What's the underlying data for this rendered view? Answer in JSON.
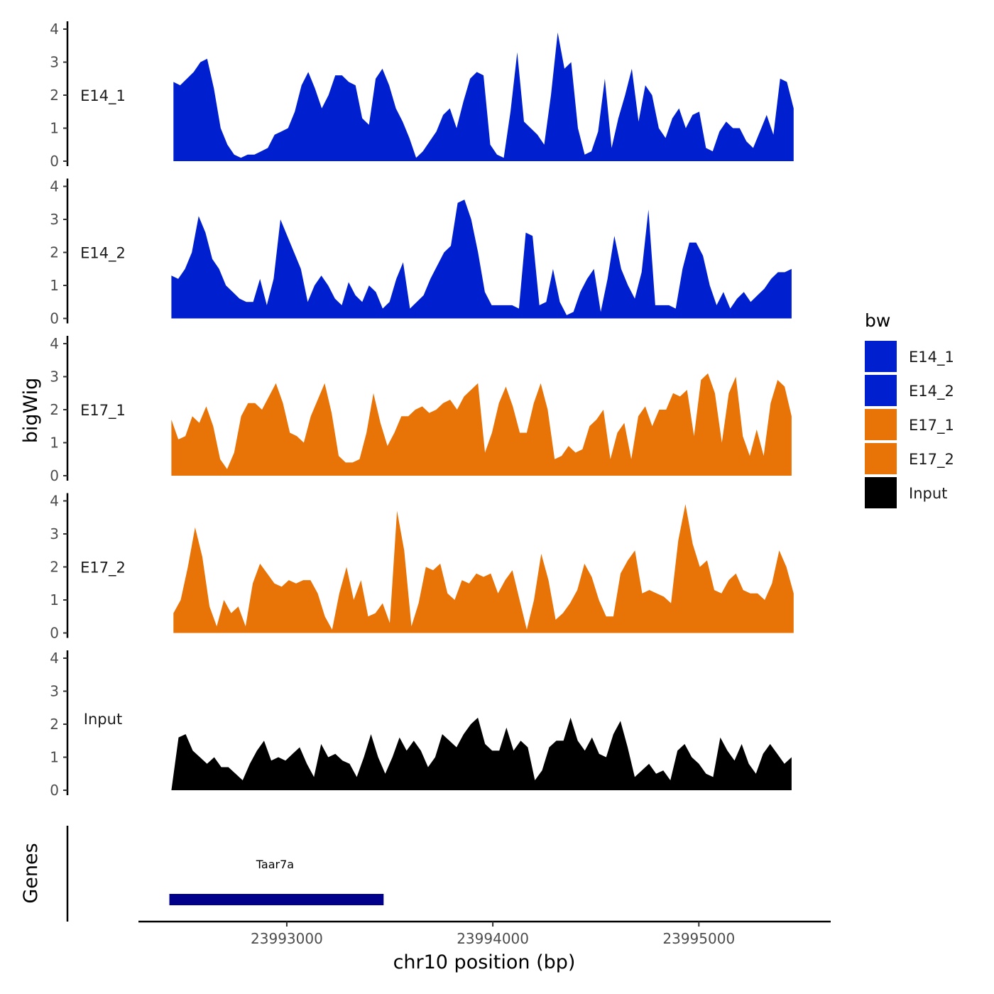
{
  "chart_data": {
    "type": "area",
    "title": "",
    "xlabel": "chr10 position (bp)",
    "ylabel": "bigWig",
    "genes_label": "Genes",
    "ylim": [
      0,
      4
    ],
    "yticks": [
      "0",
      "1",
      "2",
      "3",
      "4"
    ],
    "xlim": [
      23992280,
      23995640
    ],
    "xticks": [
      {
        "value": 23993000,
        "label": "23993000"
      },
      {
        "value": 23994000,
        "label": "23994000"
      },
      {
        "value": 23995000,
        "label": "23995000"
      }
    ],
    "legend": {
      "title": "bw",
      "position": "right",
      "entries": [
        {
          "label": "E14_1",
          "color": "#0020CF"
        },
        {
          "label": "E14_2",
          "color": "#0020CF"
        },
        {
          "label": "E17_1",
          "color": "#E87307"
        },
        {
          "label": "E17_2",
          "color": "#E87307"
        },
        {
          "label": "Input",
          "color": "#000000"
        }
      ]
    },
    "series": [
      {
        "name": "E14_1",
        "color": "#0020CF",
        "x_start": 23992450,
        "x_end": 23995460,
        "values": [
          2.4,
          2.3,
          2.5,
          2.7,
          3.0,
          3.1,
          2.2,
          1.0,
          0.5,
          0.2,
          0.1,
          0.2,
          0.2,
          0.3,
          0.4,
          0.8,
          0.9,
          1.0,
          1.5,
          2.3,
          2.7,
          2.2,
          1.6,
          2.0,
          2.6,
          2.6,
          2.4,
          2.3,
          1.3,
          1.1,
          2.5,
          2.8,
          2.3,
          1.6,
          1.2,
          0.7,
          0.1,
          0.3,
          0.6,
          0.9,
          1.4,
          1.6,
          1.0,
          1.8,
          2.5,
          2.7,
          2.6,
          0.5,
          0.2,
          0.1,
          1.5,
          3.3,
          1.2,
          1.0,
          0.8,
          0.5,
          2.0,
          3.9,
          2.8,
          3.0,
          1.0,
          0.2,
          0.3,
          0.9,
          2.5,
          0.4,
          1.3,
          2.0,
          2.8,
          1.2,
          2.3,
          2.0,
          1.0,
          0.7,
          1.3,
          1.6,
          1.0,
          1.4,
          1.5,
          0.4,
          0.3,
          0.9,
          1.2,
          1.0,
          1.0,
          0.6,
          0.4,
          0.9,
          1.4,
          0.8,
          2.5,
          2.4,
          1.6
        ]
      },
      {
        "name": "E14_2",
        "color": "#0020CF",
        "x_start": 23992440,
        "x_end": 23995450,
        "values": [
          1.3,
          1.2,
          1.5,
          2.0,
          3.1,
          2.6,
          1.8,
          1.5,
          1.0,
          0.8,
          0.6,
          0.5,
          0.5,
          1.2,
          0.4,
          1.2,
          3.0,
          2.5,
          2.0,
          1.5,
          0.5,
          1.0,
          1.3,
          1.0,
          0.6,
          0.4,
          1.1,
          0.7,
          0.5,
          1.0,
          0.8,
          0.3,
          0.5,
          1.2,
          1.7,
          0.3,
          0.5,
          0.7,
          1.2,
          1.6,
          2.0,
          2.2,
          3.5,
          3.6,
          3.0,
          2.0,
          0.8,
          0.4,
          0.4,
          0.4,
          0.4,
          0.3,
          2.6,
          2.5,
          0.4,
          0.5,
          1.5,
          0.5,
          0.1,
          0.2,
          0.8,
          1.2,
          1.5,
          0.2,
          1.2,
          2.5,
          1.5,
          1.0,
          0.6,
          1.4,
          3.3,
          0.4,
          0.4,
          0.4,
          0.3,
          1.5,
          2.3,
          2.3,
          1.9,
          1.0,
          0.4,
          0.8,
          0.3,
          0.6,
          0.8,
          0.5,
          0.7,
          0.9,
          1.2,
          1.4,
          1.4,
          1.5
        ]
      },
      {
        "name": "E17_1",
        "color": "#E87307",
        "x_start": 23992440,
        "x_end": 23995450,
        "values": [
          1.7,
          1.1,
          1.2,
          1.8,
          1.6,
          2.1,
          1.5,
          0.5,
          0.2,
          0.7,
          1.8,
          2.2,
          2.2,
          2.0,
          2.4,
          2.8,
          2.2,
          1.3,
          1.2,
          1.0,
          1.8,
          2.3,
          2.8,
          1.9,
          0.6,
          0.4,
          0.4,
          0.5,
          1.3,
          2.5,
          1.6,
          0.9,
          1.3,
          1.8,
          1.8,
          2.0,
          2.1,
          1.9,
          2.0,
          2.2,
          2.3,
          2.0,
          2.4,
          2.6,
          2.8,
          0.7,
          1.3,
          2.2,
          2.7,
          2.1,
          1.3,
          1.3,
          2.2,
          2.8,
          2.0,
          0.5,
          0.6,
          0.9,
          0.7,
          0.8,
          1.5,
          1.7,
          2.0,
          0.5,
          1.3,
          1.6,
          0.5,
          1.8,
          2.1,
          1.5,
          2.0,
          2.0,
          2.5,
          2.4,
          2.6,
          1.2,
          2.9,
          3.1,
          2.5,
          1.0,
          2.5,
          3.0,
          1.2,
          0.6,
          1.4,
          0.6,
          2.2,
          2.9,
          2.7,
          1.8
        ]
      },
      {
        "name": "E17_2",
        "color": "#E87307",
        "x_start": 23992450,
        "x_end": 23995460,
        "values": [
          0.6,
          1.0,
          2.0,
          3.2,
          2.3,
          0.8,
          0.2,
          1.0,
          0.6,
          0.8,
          0.2,
          1.5,
          2.1,
          1.8,
          1.5,
          1.4,
          1.6,
          1.5,
          1.6,
          1.6,
          1.2,
          0.5,
          0.1,
          1.2,
          2.0,
          1.0,
          1.6,
          0.5,
          0.6,
          0.9,
          0.3,
          3.7,
          2.5,
          0.2,
          0.9,
          2.0,
          1.9,
          2.1,
          1.2,
          1.0,
          1.6,
          1.5,
          1.8,
          1.7,
          1.8,
          1.2,
          1.6,
          1.9,
          1.0,
          0.1,
          1.0,
          2.4,
          1.6,
          0.4,
          0.6,
          0.9,
          1.3,
          2.1,
          1.7,
          1.0,
          0.5,
          0.5,
          1.8,
          2.2,
          2.5,
          1.2,
          1.3,
          1.2,
          1.1,
          0.9,
          2.8,
          3.9,
          2.7,
          2.0,
          2.2,
          1.3,
          1.2,
          1.6,
          1.8,
          1.3,
          1.2,
          1.2,
          1.0,
          1.5,
          2.5,
          2.0,
          1.2
        ]
      },
      {
        "name": "Input",
        "color": "#000000",
        "x_start": 23992440,
        "x_end": 23995450,
        "values": [
          0.0,
          1.6,
          1.7,
          1.2,
          1.0,
          0.8,
          1.0,
          0.7,
          0.7,
          0.5,
          0.3,
          0.8,
          1.2,
          1.5,
          0.9,
          1.0,
          0.9,
          1.1,
          1.3,
          0.8,
          0.4,
          1.4,
          1.0,
          1.1,
          0.9,
          0.8,
          0.4,
          1.0,
          1.7,
          1.0,
          0.5,
          1.0,
          1.6,
          1.2,
          1.5,
          1.2,
          0.7,
          1.0,
          1.7,
          1.5,
          1.3,
          1.7,
          2.0,
          2.2,
          1.4,
          1.2,
          1.2,
          1.9,
          1.2,
          1.5,
          1.3,
          0.3,
          0.6,
          1.3,
          1.5,
          1.5,
          2.2,
          1.5,
          1.2,
          1.6,
          1.1,
          1.0,
          1.7,
          2.1,
          1.3,
          0.4,
          0.6,
          0.8,
          0.5,
          0.6,
          0.3,
          1.2,
          1.4,
          1.0,
          0.8,
          0.5,
          0.4,
          1.6,
          1.2,
          0.9,
          1.4,
          0.8,
          0.5,
          1.1,
          1.4,
          1.1,
          0.8,
          1.0
        ]
      }
    ],
    "genes": [
      {
        "name": "Taar7a",
        "start": 23992430,
        "end": 23993470,
        "color": "#00008B"
      }
    ]
  }
}
